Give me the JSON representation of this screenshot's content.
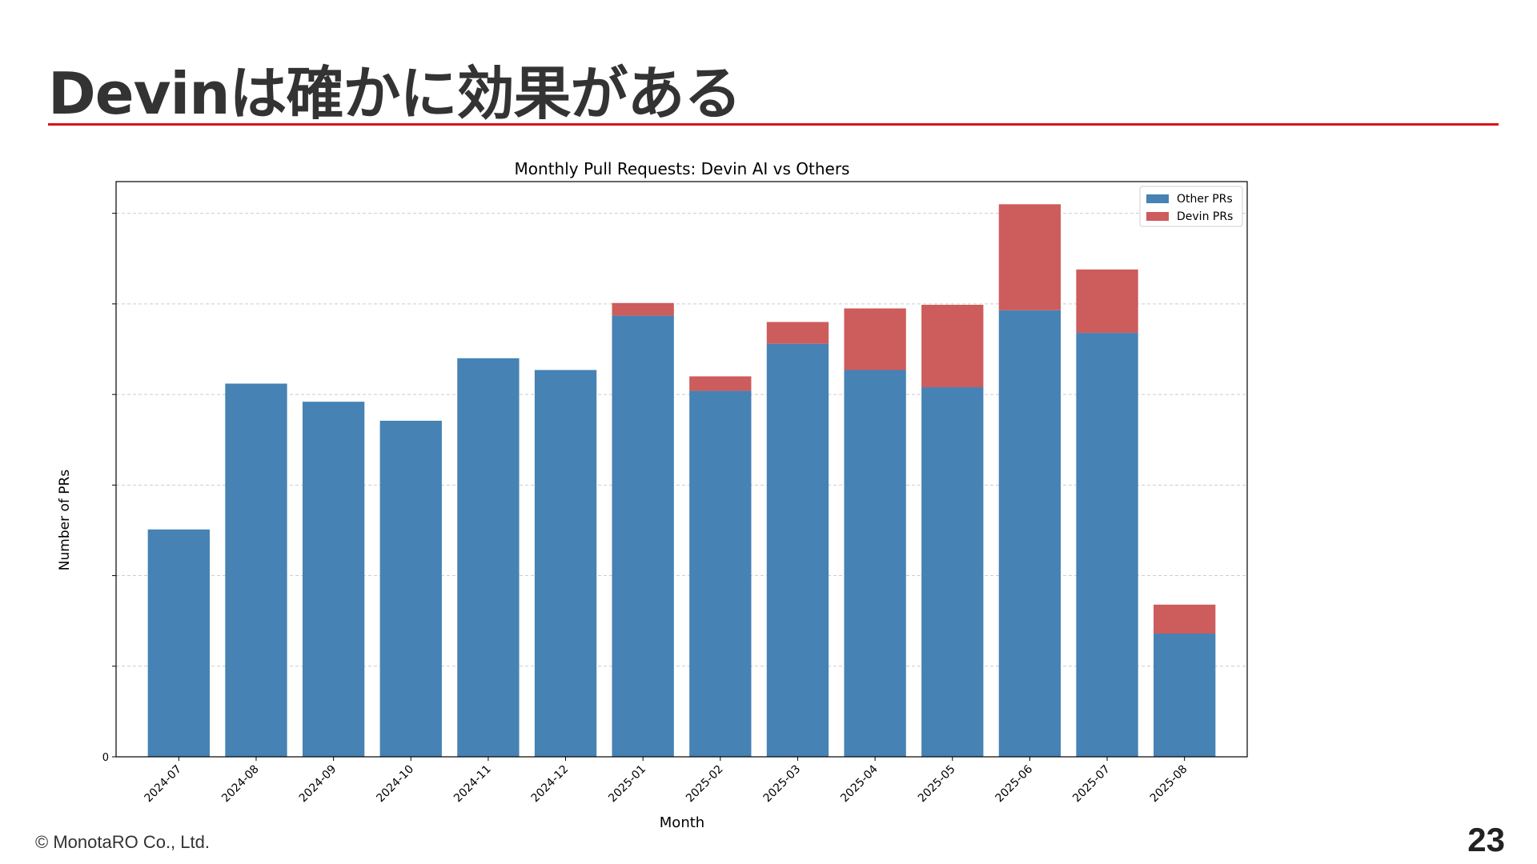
{
  "slide": {
    "title": "Devinは確かに効果がある",
    "copyright": "© MonotaRO Co., Ltd.",
    "page_number": "23",
    "accent_color": "#d7141a"
  },
  "chart_data": {
    "type": "bar",
    "stacked": true,
    "title": "Monthly Pull Requests: Devin AI vs Others",
    "xlabel": "Month",
    "ylabel": "Number of PRs",
    "y_tick_labels": [
      "0"
    ],
    "ylim": [
      0,
      635
    ],
    "grid": true,
    "legend_position": "top-right",
    "categories": [
      "2024-07",
      "2024-08",
      "2024-09",
      "2024-10",
      "2024-11",
      "2024-12",
      "2025-01",
      "2025-02",
      "2025-03",
      "2025-04",
      "2025-05",
      "2025-06",
      "2025-07",
      "2025-08"
    ],
    "series": [
      {
        "name": "Other PRs",
        "color": "#4682b4",
        "values": [
          251,
          412,
          392,
          371,
          440,
          427,
          487,
          404,
          456,
          427,
          408,
          493,
          468,
          136
        ]
      },
      {
        "name": "Devin PRs",
        "color": "#cd5c5c",
        "values": [
          0,
          0,
          0,
          0,
          0,
          0,
          14,
          16,
          24,
          68,
          91,
          117,
          70,
          32
        ]
      }
    ]
  }
}
